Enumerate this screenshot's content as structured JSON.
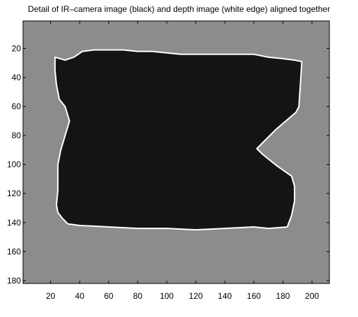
{
  "chart_data": {
    "type": "heatmap",
    "title": "Detail of IR–camera image (black) and depth image (white edge) aligned together",
    "xlabel": "",
    "ylabel": "",
    "xlim": [
      1,
      212
    ],
    "ylim": [
      1,
      182
    ],
    "y_reversed": true,
    "grid": false,
    "background_color": "#8c8c8c",
    "region_color": "#141414",
    "edge_color": "#ffffff",
    "x_ticks": [
      20,
      40,
      60,
      80,
      100,
      120,
      140,
      160,
      180,
      200
    ],
    "y_ticks": [
      20,
      40,
      60,
      80,
      100,
      120,
      140,
      160,
      180
    ],
    "x_tick_labels": [
      "20",
      "40",
      "60",
      "80",
      "100",
      "120",
      "140",
      "160",
      "180",
      "200"
    ],
    "y_tick_labels": [
      "20",
      "40",
      "60",
      "80",
      "100",
      "120",
      "140",
      "160",
      "180"
    ],
    "region_outline": [
      [
        23,
        26
      ],
      [
        30,
        28
      ],
      [
        36,
        26
      ],
      [
        42,
        22
      ],
      [
        50,
        21
      ],
      [
        60,
        21
      ],
      [
        70,
        21
      ],
      [
        80,
        22
      ],
      [
        90,
        22
      ],
      [
        100,
        23
      ],
      [
        110,
        24
      ],
      [
        120,
        24
      ],
      [
        130,
        24
      ],
      [
        140,
        24
      ],
      [
        150,
        24
      ],
      [
        160,
        24
      ],
      [
        170,
        26
      ],
      [
        180,
        27
      ],
      [
        188,
        28
      ],
      [
        193,
        29
      ],
      [
        192,
        45
      ],
      [
        191,
        60
      ],
      [
        189,
        64
      ],
      [
        182,
        70
      ],
      [
        175,
        76
      ],
      [
        166,
        85
      ],
      [
        162,
        89
      ],
      [
        166,
        93
      ],
      [
        176,
        101
      ],
      [
        186,
        108
      ],
      [
        188,
        115
      ],
      [
        188,
        125
      ],
      [
        186,
        135
      ],
      [
        183,
        143
      ],
      [
        170,
        144
      ],
      [
        160,
        143
      ],
      [
        140,
        144
      ],
      [
        120,
        145
      ],
      [
        100,
        144
      ],
      [
        80,
        144
      ],
      [
        60,
        143
      ],
      [
        40,
        142
      ],
      [
        32,
        141
      ],
      [
        28,
        137
      ],
      [
        25,
        133
      ],
      [
        24,
        128
      ],
      [
        25,
        118
      ],
      [
        25,
        100
      ],
      [
        27,
        90
      ],
      [
        30,
        80
      ],
      [
        33,
        70
      ],
      [
        30,
        60
      ],
      [
        26,
        55
      ],
      [
        24,
        45
      ],
      [
        23,
        35
      ]
    ]
  }
}
